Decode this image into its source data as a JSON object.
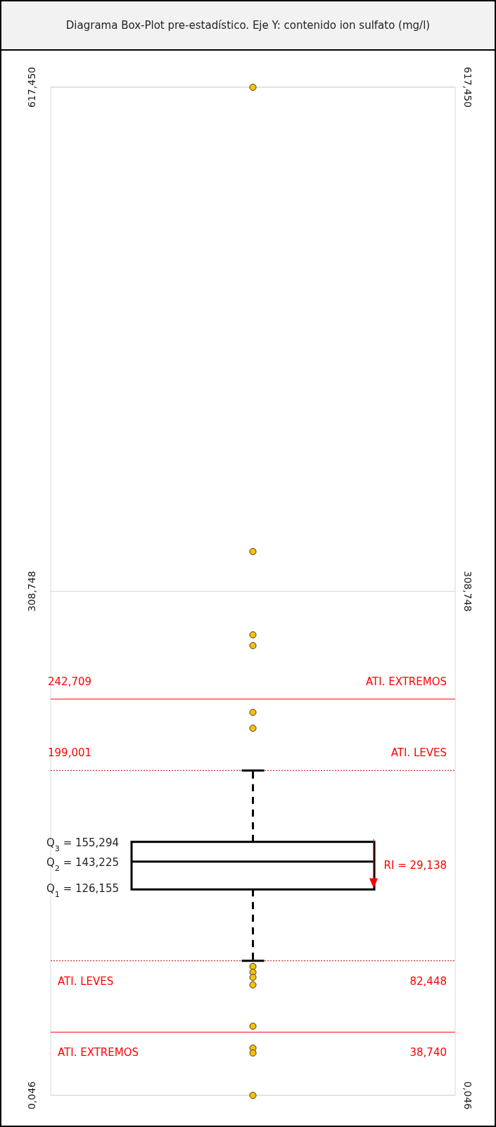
{
  "chart_data": {
    "type": "box",
    "title": "Diagrama Box-Plot pre-estadístico. Eje Y: contenido ion sulfato (mg/l)",
    "categories": [
      null
    ],
    "series": [
      {
        "color": "#000000",
        "boxes": [
          {
            "low": 82.448,
            "q1": 126.155,
            "median": 143.225,
            "q3": 155.294,
            "high": 199.001,
            "outliers": [
              617.45,
              333.1,
              282.1,
              275.5,
              234.6,
              224.9,
              79.0,
              75.4,
              72.3,
              67.7,
              42.4,
              29.0,
              26.0,
              0.046
            ]
          }
        ]
      }
    ],
    "ylim": [
      0.046,
      617.45
    ],
    "yticks": [
      {
        "value": 0.046,
        "label": "0,046"
      },
      {
        "value": 308.748,
        "label": "308,748"
      },
      {
        "value": 617.45,
        "label": "617,450"
      }
    ],
    "y2lim": [
      0.046,
      617.45
    ],
    "y2ticks": [
      {
        "value": 0.046,
        "label": "0,046"
      },
      {
        "value": 308.748,
        "label": "308,748"
      },
      {
        "value": 617.45,
        "label": "617,450"
      }
    ],
    "grid": "y",
    "ref_lines": [
      {
        "axis": "y",
        "value": 242.709,
        "label": "ATI. EXTREMOS",
        "color": "#ff0000",
        "line_style": "solid"
      },
      {
        "axis": "y",
        "value": 199.001,
        "label": "ATI. LEVES",
        "color": "#c00000",
        "line_style": "dotted"
      },
      {
        "axis": "y",
        "value": 82.448,
        "label": "ATI. LEVES",
        "color": "#c00000",
        "line_style": "dotted"
      },
      {
        "axis": "y",
        "value": 38.74,
        "label": "ATI. EXTREMOS",
        "color": "#ff0000",
        "line_style": "solid"
      }
    ],
    "annotations": [
      {
        "text": "242,709",
        "y": 242.709
      },
      {
        "text": "199,001",
        "y": 199.001
      },
      {
        "text": "82,448",
        "y": 82.448
      },
      {
        "text": "38,740",
        "y": 38.74
      },
      "Q$_{3}$ = 155,294",
      "Q$_{2}$ = 143,225",
      "Q$_{1}$ = 126,155",
      "RI = 29,138"
    ]
  }
}
